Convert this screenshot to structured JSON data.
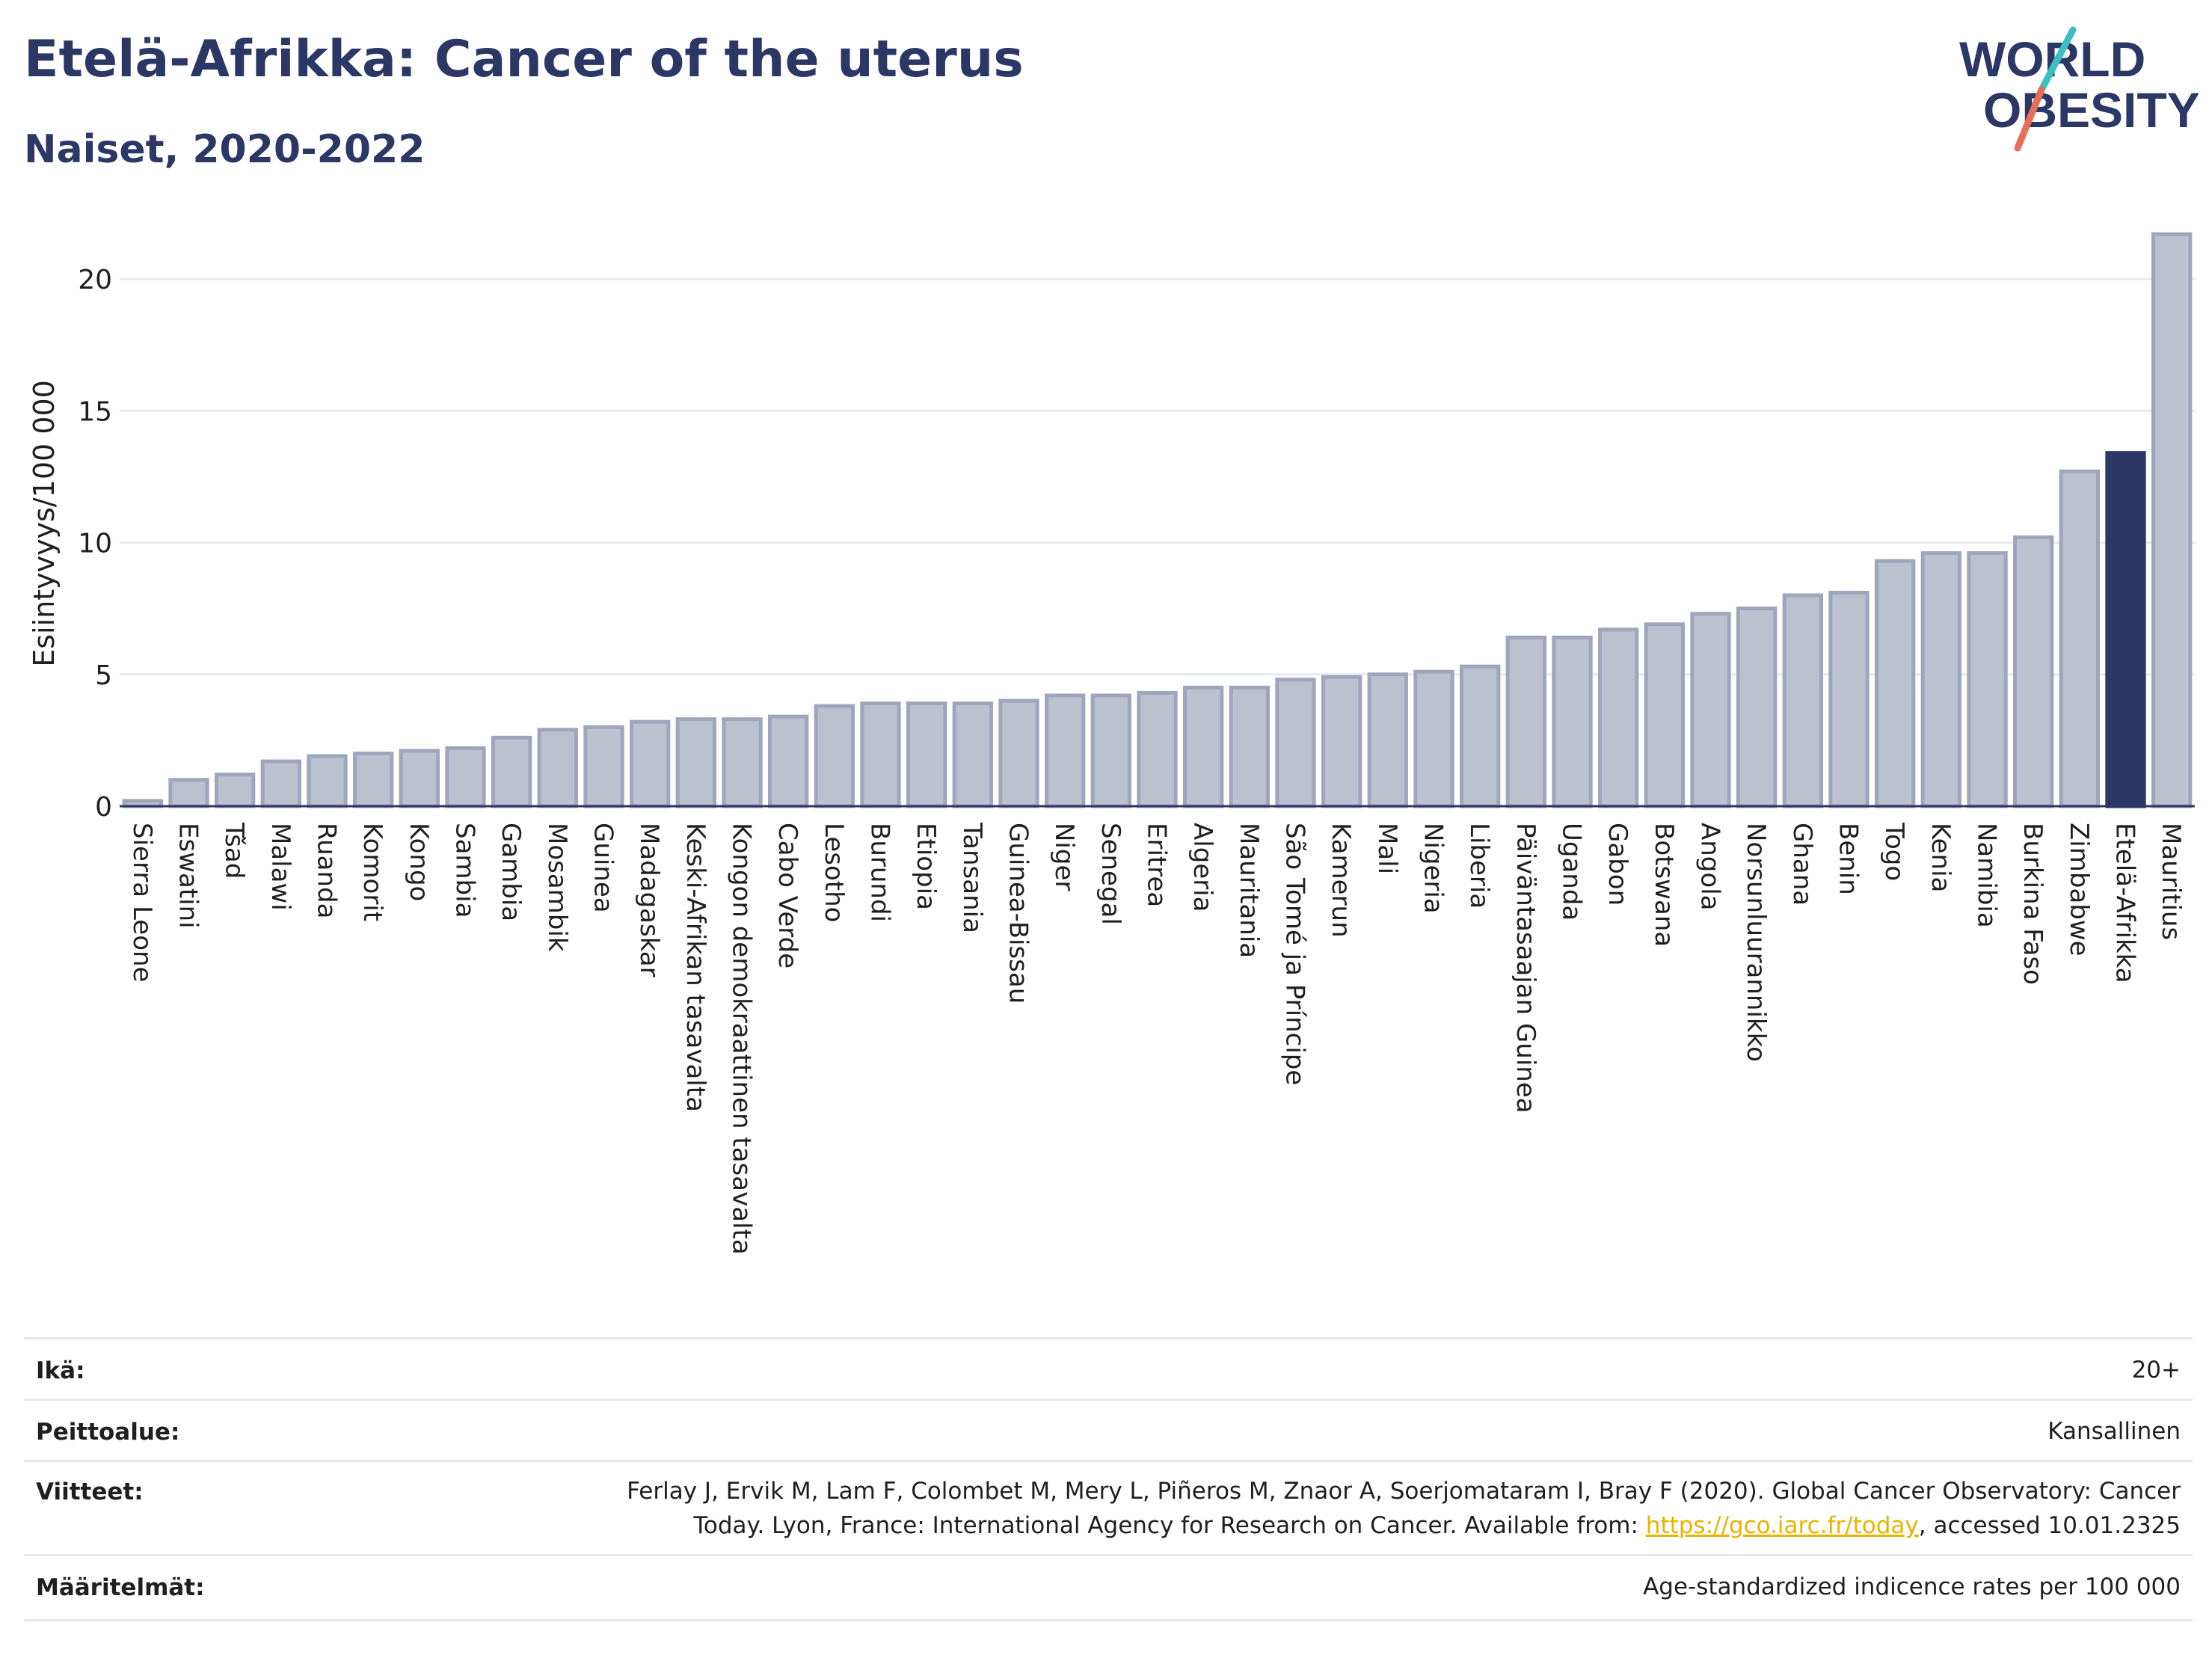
{
  "header": {
    "title": "Etelä-Afrikka: Cancer of the uterus",
    "subtitle": "Naiset, 2020-2022"
  },
  "logo": {
    "line1": "WORLD",
    "line2": "OBESITY",
    "icon": "world-obesity-logo"
  },
  "colors": {
    "bar": "#bcc1d0",
    "bar_stroke": "#9ea5bd",
    "highlight": "#2b3764",
    "grid": "#e6e9ef"
  },
  "chart_data": {
    "type": "bar",
    "title": "Etelä-Afrikka: Cancer of the uterus",
    "ylabel": "Esiintyvyys/100 000",
    "ylim": [
      0,
      22
    ],
    "yticks": [
      0,
      5,
      10,
      15,
      20
    ],
    "grid": true,
    "highlight": "Etelä-Afrikka",
    "categories": [
      "Sierra Leone",
      "Eswatini",
      "Tšad",
      "Malawi",
      "Ruanda",
      "Komorit",
      "Kongo",
      "Sambia",
      "Gambia",
      "Mosambik",
      "Guinea",
      "Madagaskar",
      "Keski-Afrikan tasavalta",
      "Kongon demokraattinen tasavalta",
      "Cabo Verde",
      "Lesotho",
      "Burundi",
      "Etiopia",
      "Tansania",
      "Guinea-Bissau",
      "Niger",
      "Senegal",
      "Eritrea",
      "Algeria",
      "Mauritania",
      "São Tomé ja Príncipe",
      "Kamerun",
      "Mali",
      "Nigeria",
      "Liberia",
      "Päiväntasaajan Guinea",
      "Uganda",
      "Gabon",
      "Botswana",
      "Angola",
      "Norsunluurannikko",
      "Ghana",
      "Benin",
      "Togo",
      "Kenia",
      "Namibia",
      "Burkina Faso",
      "Zimbabwe",
      "Etelä-Afrikka",
      "Mauritius"
    ],
    "values": [
      0.2,
      1.0,
      1.2,
      1.7,
      1.9,
      2.0,
      2.1,
      2.2,
      2.6,
      2.9,
      3.0,
      3.2,
      3.3,
      3.3,
      3.4,
      3.8,
      3.9,
      3.9,
      3.9,
      4.0,
      4.2,
      4.2,
      4.3,
      4.5,
      4.5,
      4.8,
      4.9,
      5.0,
      5.1,
      5.3,
      6.4,
      6.4,
      6.7,
      6.9,
      7.3,
      7.5,
      8.0,
      8.1,
      9.3,
      9.6,
      9.6,
      10.2,
      12.7,
      13.4,
      21.7
    ]
  },
  "meta": {
    "age_label": "Ikä:",
    "age_value": "20+",
    "coverage_label": "Peittoalue:",
    "coverage_value": "Kansallinen",
    "refs_label": "Viitteet:",
    "refs_line1": "Ferlay J, Ervik M, Lam F, Colombet M, Mery L, Piñeros M, Znaor A, Soerjomataram I, Bray F (2020). Global Cancer Observatory: Cancer",
    "refs_line2_pre": "Today. Lyon, France: International Agency for Research on Cancer. Available from: ",
    "refs_link": "https://gco.iarc.fr/today",
    "refs_line2_post": ", accessed 10.01.2325",
    "defs_label": "Määritelmät:",
    "defs_value": "Age-standardized indicence rates per 100 000"
  }
}
